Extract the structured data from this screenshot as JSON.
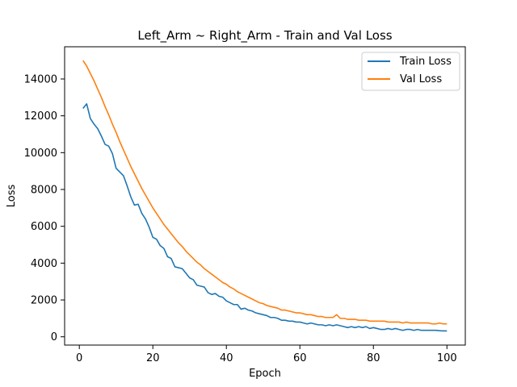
{
  "chart_data": {
    "type": "line",
    "title": "Left_Arm ~ Right_Arm - Train and Val Loss",
    "xlabel": "Epoch",
    "ylabel": "Loss",
    "xlim": [
      -4,
      105
    ],
    "ylim": [
      -450,
      15750
    ],
    "xticks": [
      0,
      20,
      40,
      60,
      80,
      100
    ],
    "yticks": [
      0,
      2000,
      4000,
      6000,
      8000,
      10000,
      12000,
      14000
    ],
    "grid": false,
    "legend_position": "top-right",
    "series": [
      {
        "name": "Train Loss",
        "color": "#1f77b4",
        "x": [
          1,
          2,
          3,
          4,
          5,
          6,
          7,
          8,
          9,
          10,
          11,
          12,
          13,
          14,
          15,
          16,
          17,
          18,
          19,
          20,
          21,
          22,
          23,
          24,
          25,
          26,
          27,
          28,
          29,
          30,
          31,
          32,
          33,
          34,
          35,
          36,
          37,
          38,
          39,
          40,
          41,
          42,
          43,
          44,
          45,
          46,
          47,
          48,
          49,
          50,
          51,
          52,
          53,
          54,
          55,
          56,
          57,
          58,
          59,
          60,
          61,
          62,
          63,
          64,
          65,
          66,
          67,
          68,
          69,
          70,
          71,
          72,
          73,
          74,
          75,
          76,
          77,
          78,
          79,
          80,
          81,
          82,
          83,
          84,
          85,
          86,
          87,
          88,
          89,
          90,
          91,
          92,
          93,
          94,
          95,
          96,
          97,
          98,
          99,
          100
        ],
        "values": [
          12400,
          12650,
          11850,
          11550,
          11300,
          10900,
          10450,
          10350,
          9950,
          9150,
          8950,
          8750,
          8200,
          7600,
          7150,
          7200,
          6700,
          6400,
          5950,
          5400,
          5300,
          4950,
          4800,
          4350,
          4250,
          3800,
          3750,
          3700,
          3450,
          3200,
          3100,
          2800,
          2750,
          2700,
          2400,
          2300,
          2350,
          2200,
          2150,
          1950,
          1850,
          1750,
          1750,
          1500,
          1550,
          1450,
          1400,
          1300,
          1250,
          1200,
          1150,
          1050,
          1050,
          1000,
          900,
          900,
          850,
          850,
          800,
          800,
          750,
          700,
          750,
          700,
          650,
          650,
          600,
          650,
          600,
          650,
          600,
          550,
          500,
          550,
          500,
          550,
          500,
          550,
          450,
          500,
          450,
          400,
          400,
          450,
          400,
          450,
          400,
          350,
          400,
          400,
          350,
          400,
          350,
          350,
          350,
          350,
          350,
          330,
          320,
          320
        ]
      },
      {
        "name": "Val Loss",
        "color": "#ff7f0e",
        "x": [
          1,
          2,
          3,
          4,
          5,
          6,
          7,
          8,
          9,
          10,
          11,
          12,
          13,
          14,
          15,
          16,
          17,
          18,
          19,
          20,
          21,
          22,
          23,
          24,
          25,
          26,
          27,
          28,
          29,
          30,
          31,
          32,
          33,
          34,
          35,
          36,
          37,
          38,
          39,
          40,
          41,
          42,
          43,
          44,
          45,
          46,
          47,
          48,
          49,
          50,
          51,
          52,
          53,
          54,
          55,
          56,
          57,
          58,
          59,
          60,
          61,
          62,
          63,
          64,
          65,
          66,
          67,
          68,
          69,
          70,
          71,
          72,
          73,
          74,
          75,
          76,
          77,
          78,
          79,
          80,
          81,
          82,
          83,
          84,
          85,
          86,
          87,
          88,
          89,
          90,
          91,
          92,
          93,
          94,
          95,
          96,
          97,
          98,
          99,
          100
        ],
        "values": [
          15000,
          14700,
          14300,
          13900,
          13450,
          13000,
          12500,
          12050,
          11550,
          11100,
          10600,
          10150,
          9700,
          9250,
          8850,
          8450,
          8050,
          7700,
          7350,
          7000,
          6700,
          6400,
          6100,
          5850,
          5600,
          5350,
          5100,
          4900,
          4650,
          4450,
          4250,
          4050,
          3900,
          3700,
          3550,
          3400,
          3250,
          3100,
          2950,
          2850,
          2700,
          2600,
          2450,
          2350,
          2250,
          2150,
          2050,
          1950,
          1850,
          1800,
          1700,
          1650,
          1600,
          1550,
          1450,
          1450,
          1400,
          1350,
          1300,
          1300,
          1250,
          1200,
          1200,
          1150,
          1100,
          1100,
          1050,
          1050,
          1050,
          1200,
          1000,
          1000,
          950,
          950,
          950,
          900,
          900,
          900,
          850,
          850,
          850,
          850,
          850,
          800,
          800,
          800,
          800,
          750,
          800,
          750,
          750,
          750,
          750,
          750,
          750,
          700,
          700,
          750,
          700,
          700
        ]
      }
    ]
  }
}
